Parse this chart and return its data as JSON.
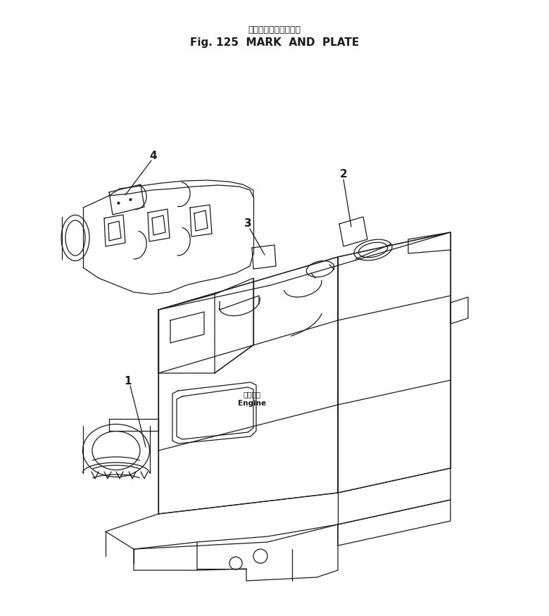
{
  "title_japanese": "マークおよびプレート",
  "title_english": "Fig. 125  MARK  AND  PLATE",
  "bg_color": "#ffffff",
  "line_color": "#1a1a1a",
  "label_1": "1",
  "label_2": "2",
  "label_3": "3",
  "label_4": "4",
  "engine_label_jp": "エンジン",
  "engine_label_en": "Engine",
  "title_fontsize": 11,
  "label_fontsize": 11
}
